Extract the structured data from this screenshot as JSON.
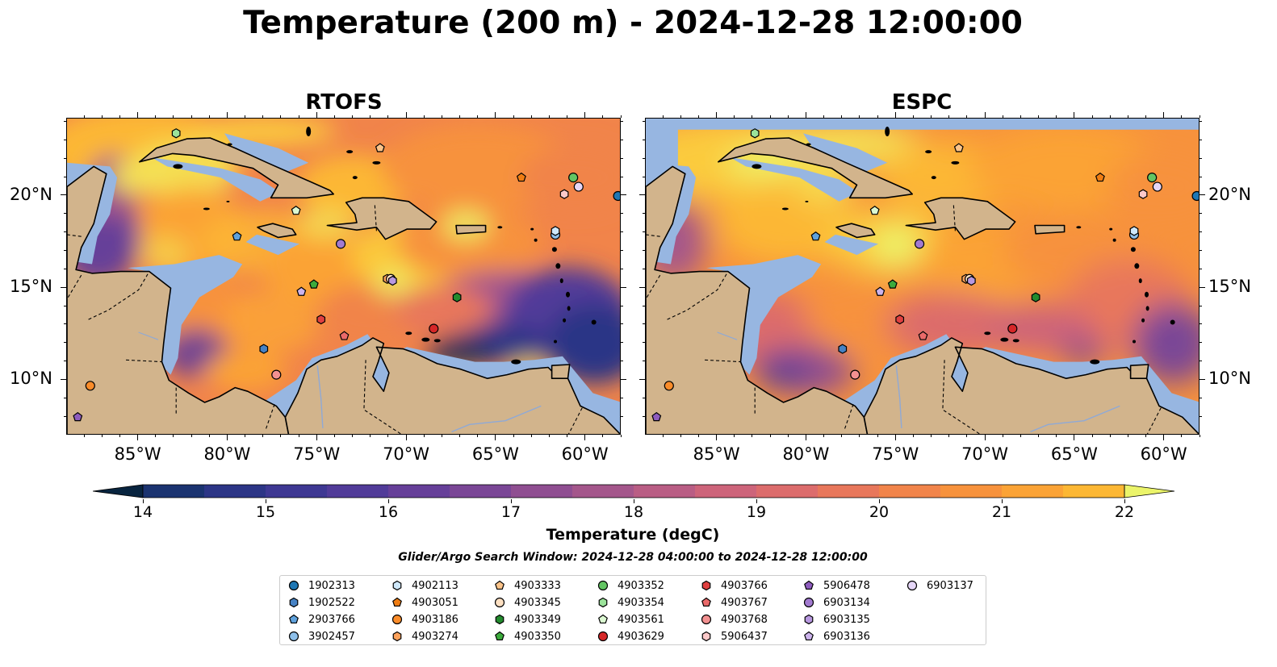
{
  "title": "Temperature (200 m) - 2024-12-28 12:00:00",
  "panels": [
    {
      "title": "RTOFS",
      "model": "rtofs"
    },
    {
      "title": "ESPC",
      "model": "espc"
    }
  ],
  "map": {
    "lon_range": [
      -89,
      -58
    ],
    "lat_range": [
      7,
      24.2
    ],
    "lon_ticks": [
      "85°W",
      "80°W",
      "75°W",
      "70°W",
      "65°W",
      "60°W"
    ],
    "lat_ticks": [
      "10°N",
      "15°N",
      "20°N"
    ],
    "colors": {
      "land": "#d2b48c",
      "shallow": "#97b6e1",
      "deep_pacific": "#082236",
      "coast": "#000000"
    }
  },
  "colorbar": {
    "label": "Temperature (degC)",
    "vmin": 14,
    "vmax": 22,
    "tick_labels": [
      "14",
      "15",
      "16",
      "17",
      "18",
      "19",
      "20",
      "21",
      "22"
    ],
    "colors": [
      "#08243f",
      "#0c2e57",
      "#1a3370",
      "#2c3586",
      "#3e3893",
      "#513b99",
      "#663f99",
      "#7a4696",
      "#8f4e91",
      "#a4568b",
      "#b95d84",
      "#cd647a",
      "#dc6c6c",
      "#e8775b",
      "#f1844a",
      "#f7923c",
      "#fba336",
      "#fcb734",
      "#fbcb3c",
      "#f4e154",
      "#ebf46a"
    ]
  },
  "search_window": "Glider/Argo Search Window: 2024-12-28 04:00:00 to 2024-12-28 12:00:00",
  "legend": [
    {
      "id": "1902313",
      "marker": "circle",
      "color": "#1f77b4"
    },
    {
      "id": "1902522",
      "marker": "hexagon",
      "color": "#4682c4"
    },
    {
      "id": "2903766",
      "marker": "pentagon",
      "color": "#5fa2dd"
    },
    {
      "id": "3902457",
      "marker": "circle",
      "color": "#8ec0ea"
    },
    {
      "id": "4902113",
      "marker": "hexagon",
      "color": "#cfe8fa"
    },
    {
      "id": "4903051",
      "marker": "pentagon",
      "color": "#f07d12"
    },
    {
      "id": "4903186",
      "marker": "circle",
      "color": "#fa8c2a"
    },
    {
      "id": "4903274",
      "marker": "hexagon",
      "color": "#fda25c"
    },
    {
      "id": "4903333",
      "marker": "pentagon",
      "color": "#fcc48a"
    },
    {
      "id": "4903345",
      "marker": "circle",
      "color": "#fde0c2"
    },
    {
      "id": "4903349",
      "marker": "hexagon",
      "color": "#238b2e"
    },
    {
      "id": "4903350",
      "marker": "pentagon",
      "color": "#3cab3c"
    },
    {
      "id": "4903352",
      "marker": "circle",
      "color": "#63c563"
    },
    {
      "id": "4903354",
      "marker": "hexagon",
      "color": "#9be39a"
    },
    {
      "id": "4903561",
      "marker": "pentagon",
      "color": "#dcf9d2"
    },
    {
      "id": "4903629",
      "marker": "circle",
      "color": "#d62728"
    },
    {
      "id": "4903766",
      "marker": "hexagon",
      "color": "#e04040"
    },
    {
      "id": "4903767",
      "marker": "pentagon",
      "color": "#ea6a6a"
    },
    {
      "id": "4903768",
      "marker": "circle",
      "color": "#f39191"
    },
    {
      "id": "5906437",
      "marker": "hexagon",
      "color": "#fcc9c9"
    },
    {
      "id": "5906478",
      "marker": "pentagon",
      "color": "#8e5cbe"
    },
    {
      "id": "6903134",
      "marker": "circle",
      "color": "#a27ad0"
    },
    {
      "id": "6903135",
      "marker": "hexagon",
      "color": "#b898e0"
    },
    {
      "id": "6903136",
      "marker": "pentagon",
      "color": "#ccb3ec"
    },
    {
      "id": "6903137",
      "marker": "circle",
      "color": "#e5d6f7"
    }
  ],
  "floats": [
    {
      "id": "1902313",
      "lon": -58.2,
      "lat": 20.0
    },
    {
      "id": "1902522",
      "lon": -78.0,
      "lat": 11.7
    },
    {
      "id": "2903766",
      "lon": -79.5,
      "lat": 17.8
    },
    {
      "id": "3902457",
      "lon": -61.7,
      "lat": 17.9
    },
    {
      "id": "4902113",
      "lon": -61.7,
      "lat": 18.1
    },
    {
      "id": "4903051",
      "lon": -63.6,
      "lat": 21.0
    },
    {
      "id": "4903186",
      "lon": -87.7,
      "lat": 9.7
    },
    {
      "id": "4903274",
      "lon": -71.1,
      "lat": 15.5
    },
    {
      "id": "4903333",
      "lon": -71.5,
      "lat": 22.6
    },
    {
      "id": "4903345",
      "lon": -70.9,
      "lat": 15.5
    },
    {
      "id": "4903349",
      "lon": -67.2,
      "lat": 14.5
    },
    {
      "id": "4903350",
      "lon": -75.2,
      "lat": 15.2
    },
    {
      "id": "4903352",
      "lon": -60.7,
      "lat": 21.0
    },
    {
      "id": "4903354",
      "lon": -82.9,
      "lat": 23.4
    },
    {
      "id": "4903561",
      "lon": -76.2,
      "lat": 19.2
    },
    {
      "id": "4903629",
      "lon": -68.5,
      "lat": 12.8
    },
    {
      "id": "4903766",
      "lon": -74.8,
      "lat": 13.3
    },
    {
      "id": "4903767",
      "lon": -73.5,
      "lat": 12.4
    },
    {
      "id": "4903768",
      "lon": -77.3,
      "lat": 10.3
    },
    {
      "id": "5906437",
      "lon": -61.2,
      "lat": 20.1
    },
    {
      "id": "5906478",
      "lon": -88.4,
      "lat": 8.0
    },
    {
      "id": "6903134",
      "lon": -73.7,
      "lat": 17.4
    },
    {
      "id": "6903135",
      "lon": -70.8,
      "lat": 15.4
    },
    {
      "id": "6903136",
      "lon": -75.9,
      "lat": 14.8
    },
    {
      "id": "6903137",
      "lon": -60.4,
      "lat": 20.5
    }
  ]
}
